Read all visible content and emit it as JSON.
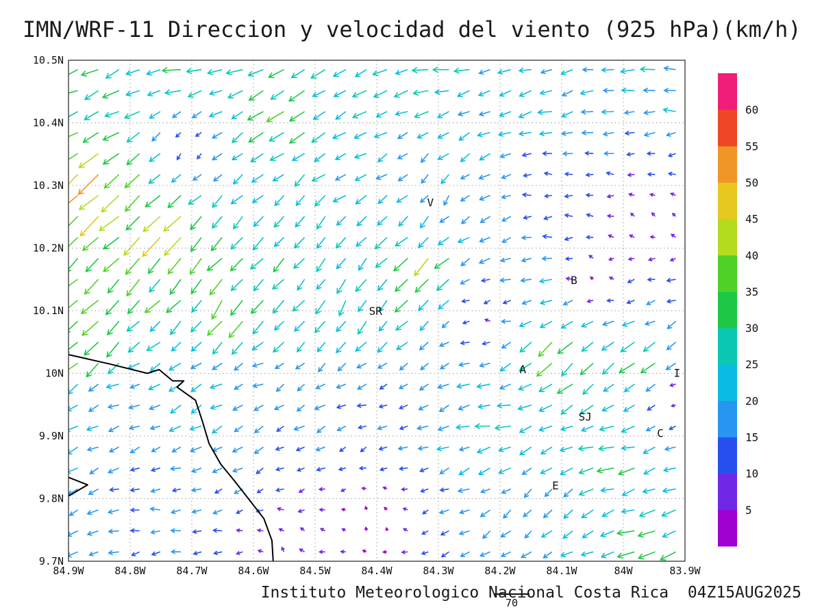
{
  "title": "IMN/WRF-11 Direccion y velocidad del viento (925 hPa)(km/h)",
  "footer": {
    "text": "Instituto Meteorologico Nacional Costa Rica  04Z15AUG2025",
    "ref_value": "70"
  },
  "chart_data": {
    "type": "vector",
    "title": "IMN/WRF-11 Direccion y velocidad del viento (925 hPa)(km/h)",
    "units": "km/h",
    "level": "925 hPa",
    "lon_range": [
      -84.9,
      -83.9
    ],
    "lat_range": [
      9.7,
      10.5
    ],
    "grid_on": true,
    "x_ticks": [
      {
        "label": "84.9W",
        "lon": -84.9
      },
      {
        "label": "84.8W",
        "lon": -84.8
      },
      {
        "label": "84.7W",
        "lon": -84.7
      },
      {
        "label": "84.6W",
        "lon": -84.6
      },
      {
        "label": "84.5W",
        "lon": -84.5
      },
      {
        "label": "84.4W",
        "lon": -84.4
      },
      {
        "label": "84.3W",
        "lon": -84.3
      },
      {
        "label": "84.2W",
        "lon": -84.2
      },
      {
        "label": "84.1W",
        "lon": -84.1
      },
      {
        "label": "84W",
        "lon": -84.0
      },
      {
        "label": "83.9W",
        "lon": -83.9
      }
    ],
    "y_ticks": [
      {
        "label": "10.5N",
        "lat": 10.5
      },
      {
        "label": "10.4N",
        "lat": 10.4
      },
      {
        "label": "10.3N",
        "lat": 10.3
      },
      {
        "label": "10.2N",
        "lat": 10.2
      },
      {
        "label": "10.1N",
        "lat": 10.1
      },
      {
        "label": "10N",
        "lat": 10.0
      },
      {
        "label": "9.9N",
        "lat": 9.9
      },
      {
        "label": "9.8N",
        "lat": 9.8
      },
      {
        "label": "9.7N",
        "lat": 9.7
      }
    ],
    "colorbar": {
      "labels": [
        "5",
        "10",
        "15",
        "20",
        "25",
        "30",
        "35",
        "40",
        "45",
        "50",
        "55",
        "60"
      ],
      "thresholds": [
        5,
        10,
        15,
        20,
        25,
        30,
        35,
        40,
        45,
        50,
        55,
        60
      ],
      "colors": [
        "#a000d0",
        "#7028e6",
        "#2850f0",
        "#2896f0",
        "#0abce1",
        "#0ac8b4",
        "#1ec846",
        "#50d228",
        "#b4dc1e",
        "#e6c81e",
        "#f09628",
        "#f04628",
        "#f01e78"
      ]
    },
    "cities": [
      {
        "label": "V",
        "lon": -84.313,
        "lat": 10.272
      },
      {
        "label": "B",
        "lon": -84.08,
        "lat": 10.148
      },
      {
        "label": "SR",
        "lon": -84.402,
        "lat": 10.099
      },
      {
        "label": "A",
        "lon": -84.163,
        "lat": 10.006
      },
      {
        "label": "SJ",
        "lon": -84.062,
        "lat": 9.93
      },
      {
        "label": "C",
        "lon": -83.94,
        "lat": 9.904
      },
      {
        "label": "E",
        "lon": -84.11,
        "lat": 9.82
      },
      {
        "label": "I",
        "lon": -83.913,
        "lat": 10.0
      }
    ],
    "coastline": [
      [
        [
          -84.9,
          10.03
        ],
        [
          -84.833,
          10.015
        ],
        [
          -84.772,
          10.0
        ],
        [
          -84.753,
          10.006
        ],
        [
          -84.731,
          9.988
        ],
        [
          -84.713,
          9.988
        ],
        [
          -84.724,
          9.978
        ],
        [
          -84.694,
          9.957
        ],
        [
          -84.683,
          9.924
        ],
        [
          -84.672,
          9.888
        ],
        [
          -84.653,
          9.855
        ],
        [
          -84.633,
          9.831
        ],
        [
          -84.609,
          9.801
        ],
        [
          -84.583,
          9.768
        ],
        [
          -84.57,
          9.733
        ],
        [
          -84.568,
          9.7
        ]
      ],
      [
        [
          -84.9,
          9.834
        ],
        [
          -84.869,
          9.822
        ],
        [
          -84.9,
          9.804
        ]
      ]
    ],
    "grid": {
      "lon_min": -84.885,
      "lon_max": -83.915,
      "lat_min": 9.715,
      "lat_max": 10.485,
      "nx": 30,
      "ny": 24
    },
    "flow_points": [
      {
        "lon": -84.7,
        "lat": 10.48,
        "dir": 185,
        "speed": 33
      },
      {
        "lon": -84.3,
        "lat": 10.48,
        "dir": 182,
        "speed": 28
      },
      {
        "lon": -83.95,
        "lat": 10.47,
        "dir": 178,
        "speed": 24
      },
      {
        "lon": -84.55,
        "lat": 10.42,
        "dir": 205,
        "speed": 36
      },
      {
        "lon": -84.15,
        "lat": 10.42,
        "dir": 195,
        "speed": 26
      },
      {
        "lon": -84.87,
        "lat": 10.42,
        "dir": 200,
        "speed": 30
      },
      {
        "lon": -84.7,
        "lat": 10.37,
        "dir": 310,
        "speed": 6
      },
      {
        "lon": -84.86,
        "lat": 10.3,
        "dir": 222,
        "speed": 58
      },
      {
        "lon": -84.75,
        "lat": 10.22,
        "dir": 228,
        "speed": 48
      },
      {
        "lon": -84.86,
        "lat": 10.06,
        "dir": 230,
        "speed": 40
      },
      {
        "lon": -84.62,
        "lat": 10.1,
        "dir": 240,
        "speed": 42
      },
      {
        "lon": -84.5,
        "lat": 10.25,
        "dir": 238,
        "speed": 27
      },
      {
        "lon": -84.42,
        "lat": 10.3,
        "dir": 200,
        "speed": 22
      },
      {
        "lon": -84.3,
        "lat": 10.3,
        "dir": 250,
        "speed": 18
      },
      {
        "lon": -84.33,
        "lat": 10.17,
        "dir": 226,
        "speed": 46
      },
      {
        "lon": -84.45,
        "lat": 10.12,
        "dir": 250,
        "speed": 30
      },
      {
        "lon": -84.22,
        "lat": 10.09,
        "dir": 120,
        "speed": 6
      },
      {
        "lon": -84.1,
        "lat": 10.3,
        "dir": 150,
        "speed": 10
      },
      {
        "lon": -83.95,
        "lat": 10.25,
        "dir": 90,
        "speed": 8
      },
      {
        "lon": -84.05,
        "lat": 10.15,
        "dir": 60,
        "speed": 9
      },
      {
        "lon": -84.12,
        "lat": 10.14,
        "dir": 170,
        "speed": 25
      },
      {
        "lon": -84.1,
        "lat": 10.04,
        "dir": 232,
        "speed": 50
      },
      {
        "lon": -83.97,
        "lat": 10.02,
        "dir": 220,
        "speed": 36
      },
      {
        "lon": -84.6,
        "lat": 10.0,
        "dir": 185,
        "speed": 13
      },
      {
        "lon": -84.8,
        "lat": 9.96,
        "dir": 180,
        "speed": 17
      },
      {
        "lon": -84.4,
        "lat": 9.95,
        "dir": 190,
        "speed": 12
      },
      {
        "lon": -84.2,
        "lat": 9.93,
        "dir": 185,
        "speed": 28
      },
      {
        "lon": -83.9,
        "lat": 9.96,
        "dir": 80,
        "speed": 7
      },
      {
        "lon": -84.12,
        "lat": 9.8,
        "dir": 250,
        "speed": 18
      },
      {
        "lon": -84.75,
        "lat": 9.78,
        "dir": 182,
        "speed": 15
      },
      {
        "lon": -84.4,
        "lat": 9.77,
        "dir": 70,
        "speed": 7
      },
      {
        "lon": -84.02,
        "lat": 9.86,
        "dir": 190,
        "speed": 33
      },
      {
        "lon": -83.96,
        "lat": 9.73,
        "dir": 195,
        "speed": 31
      },
      {
        "lon": -84.55,
        "lat": 9.72,
        "dir": 120,
        "speed": 8
      }
    ],
    "reference_vector": {
      "value": "70"
    }
  }
}
